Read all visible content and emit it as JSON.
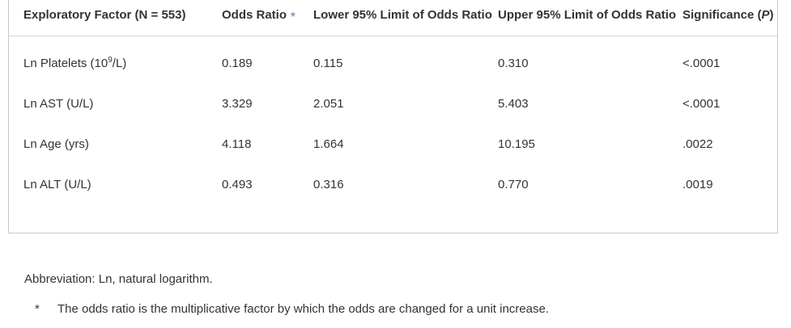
{
  "table": {
    "headers": [
      "Exploratory Factor (N = 553)",
      "Odds Ratio",
      "Lower 95% Limit of Odds Ratio",
      "Upper 95% Limit of Odds Ratio",
      "Significance (P)"
    ],
    "header_parts": {
      "col1": "Exploratory Factor (N = 553)",
      "col2_text": "Odds Ratio",
      "col2_mark": "*",
      "col3": "Lower 95% Limit of Odds Ratio",
      "col4": "Upper 95% Limit of Odds Ratio",
      "col5_text": "Significance (",
      "col5_italic": "P",
      "col5_close": ")"
    },
    "rows": [
      {
        "factor_prefix": "Ln Platelets (10",
        "factor_sup": "9",
        "factor_suffix": "/L)",
        "or": "0.189",
        "lower": "0.115",
        "upper": "0.310",
        "p": "<.0001"
      },
      {
        "factor": "Ln AST (U/L)",
        "or": "3.329",
        "lower": "2.051",
        "upper": "5.403",
        "p": "<.0001"
      },
      {
        "factor": "Ln Age (yrs)",
        "or": "4.118",
        "lower": "1.664",
        "upper": "10.195",
        "p": ".0022"
      },
      {
        "factor": "Ln ALT (U/L)",
        "or": "0.493",
        "lower": "0.316",
        "upper": "0.770",
        "p": ".0019"
      }
    ]
  },
  "footer": {
    "abbreviation": "Abbreviation: Ln, natural logarithm.",
    "footnote_mark": "*",
    "footnote_text": "The odds ratio is the multiplicative factor by which the odds are changed for a unit increase."
  }
}
